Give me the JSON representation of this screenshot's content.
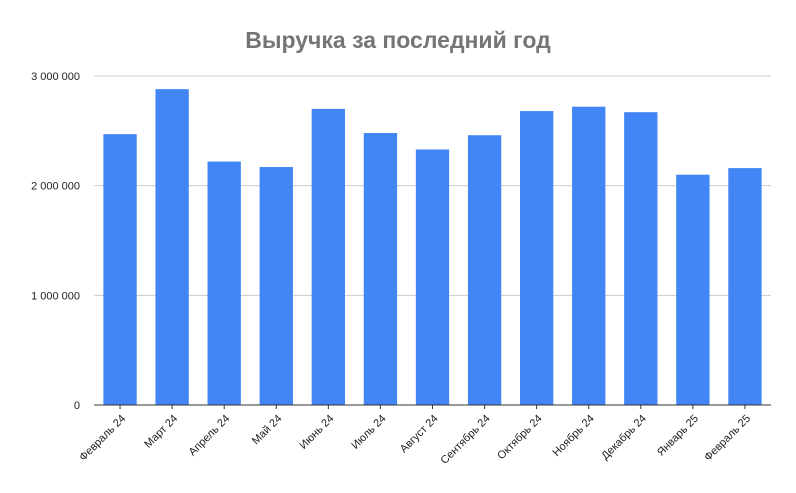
{
  "chart_data": {
    "type": "bar",
    "title": "Выручка за последний год",
    "xlabel": "",
    "ylabel": "",
    "categories": [
      "Февраль 24",
      "Март 24",
      "Апрель 24",
      "Май 24",
      "Июнь 24",
      "Июль 24",
      "Август 24",
      "Сентябрь 24",
      "Октябрь 24",
      "Ноябрь 24",
      "Декабрь 24",
      "Январь 25",
      "Февраль 25"
    ],
    "values": [
      2470000,
      2880000,
      2220000,
      2170000,
      2700000,
      2480000,
      2330000,
      2460000,
      2680000,
      2720000,
      2670000,
      2100000,
      2160000
    ],
    "ylim": [
      0,
      3000000
    ],
    "yticks": [
      0,
      1000000,
      2000000,
      3000000
    ],
    "ytick_labels": [
      "0",
      "1 000 000",
      "2 000 000",
      "3 000 000"
    ],
    "grid": true,
    "legend": "none",
    "colors": {
      "bar": "#4285f4",
      "grid": "#cccccc",
      "axis": "#333333",
      "title": "#757575",
      "tick_label": "#222222"
    }
  }
}
